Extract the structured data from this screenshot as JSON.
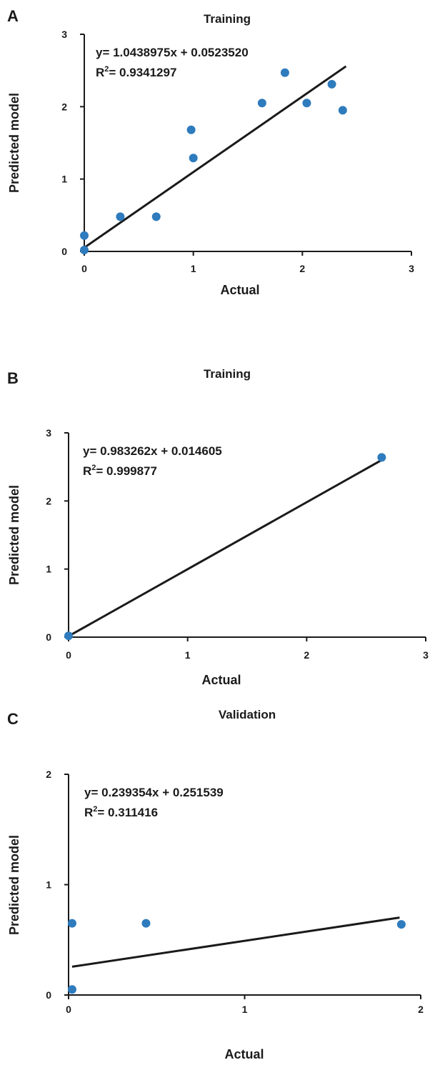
{
  "chart_data": [
    {
      "panel": "A",
      "type": "scatter",
      "title": "Training",
      "xlabel": "Actual",
      "ylabel": "Predicted model",
      "xlim": [
        0,
        3
      ],
      "ylim": [
        0,
        3
      ],
      "xticks": [
        "0",
        "1",
        "2",
        "3"
      ],
      "yticks": [
        "0",
        "1",
        "2",
        "3"
      ],
      "points": [
        {
          "x": 0.0,
          "y": 0.02
        },
        {
          "x": 0.0,
          "y": 0.22
        },
        {
          "x": 0.33,
          "y": 0.48
        },
        {
          "x": 0.66,
          "y": 0.48
        },
        {
          "x": 0.98,
          "y": 1.68
        },
        {
          "x": 1.0,
          "y": 1.29
        },
        {
          "x": 1.63,
          "y": 2.05
        },
        {
          "x": 1.84,
          "y": 2.47
        },
        {
          "x": 2.04,
          "y": 2.05
        },
        {
          "x": 2.27,
          "y": 2.31
        },
        {
          "x": 2.37,
          "y": 1.95
        }
      ],
      "fit_line": {
        "x_start": 0.0,
        "x_end": 2.4
      },
      "equation": {
        "line1": "y= 1.0438975x + 0.0523520",
        "r2_prefix": "R",
        "r2_sup": "2",
        "r2_value": "= 0.9341297"
      }
    },
    {
      "panel": "B",
      "type": "scatter",
      "title": "Training",
      "xlabel": "Actual",
      "ylabel": "Predicted model",
      "xlim": [
        0,
        3
      ],
      "ylim": [
        0,
        3
      ],
      "xticks": [
        "0",
        "1",
        "2",
        "3"
      ],
      "yticks": [
        "0",
        "1",
        "2",
        "3"
      ],
      "points": [
        {
          "x": 0.0,
          "y": 0.02
        },
        {
          "x": 2.63,
          "y": 2.64
        }
      ],
      "fit_line": {
        "x_start": 0.0,
        "x_end": 2.63
      },
      "equation": {
        "line1": "y= 0.983262x + 0.014605",
        "r2_prefix": "R",
        "r2_sup": "2",
        "r2_value": "= 0.999877"
      }
    },
    {
      "panel": "C",
      "type": "scatter",
      "title": "Validation",
      "xlabel": "Actual",
      "ylabel": "Predicted model",
      "xlim": [
        0,
        2
      ],
      "ylim": [
        0,
        2
      ],
      "xticks": [
        "0",
        "1",
        "2"
      ],
      "yticks": [
        "0",
        "1",
        "2"
      ],
      "points": [
        {
          "x": 0.02,
          "y": 0.05
        },
        {
          "x": 0.02,
          "y": 0.65
        },
        {
          "x": 0.44,
          "y": 0.65
        },
        {
          "x": 1.89,
          "y": 0.64
        }
      ],
      "fit_line": {
        "x_start": 0.02,
        "x_end": 1.88
      },
      "equation": {
        "line1": "y= 0.239354x + 0.251539",
        "r2_prefix": "R",
        "r2_sup": "2",
        "r2_value": "= 0.311416"
      }
    }
  ],
  "colors": {
    "point": "#2e7bbd",
    "axis": "#1a1a1a",
    "text": "#1a1a1a"
  }
}
